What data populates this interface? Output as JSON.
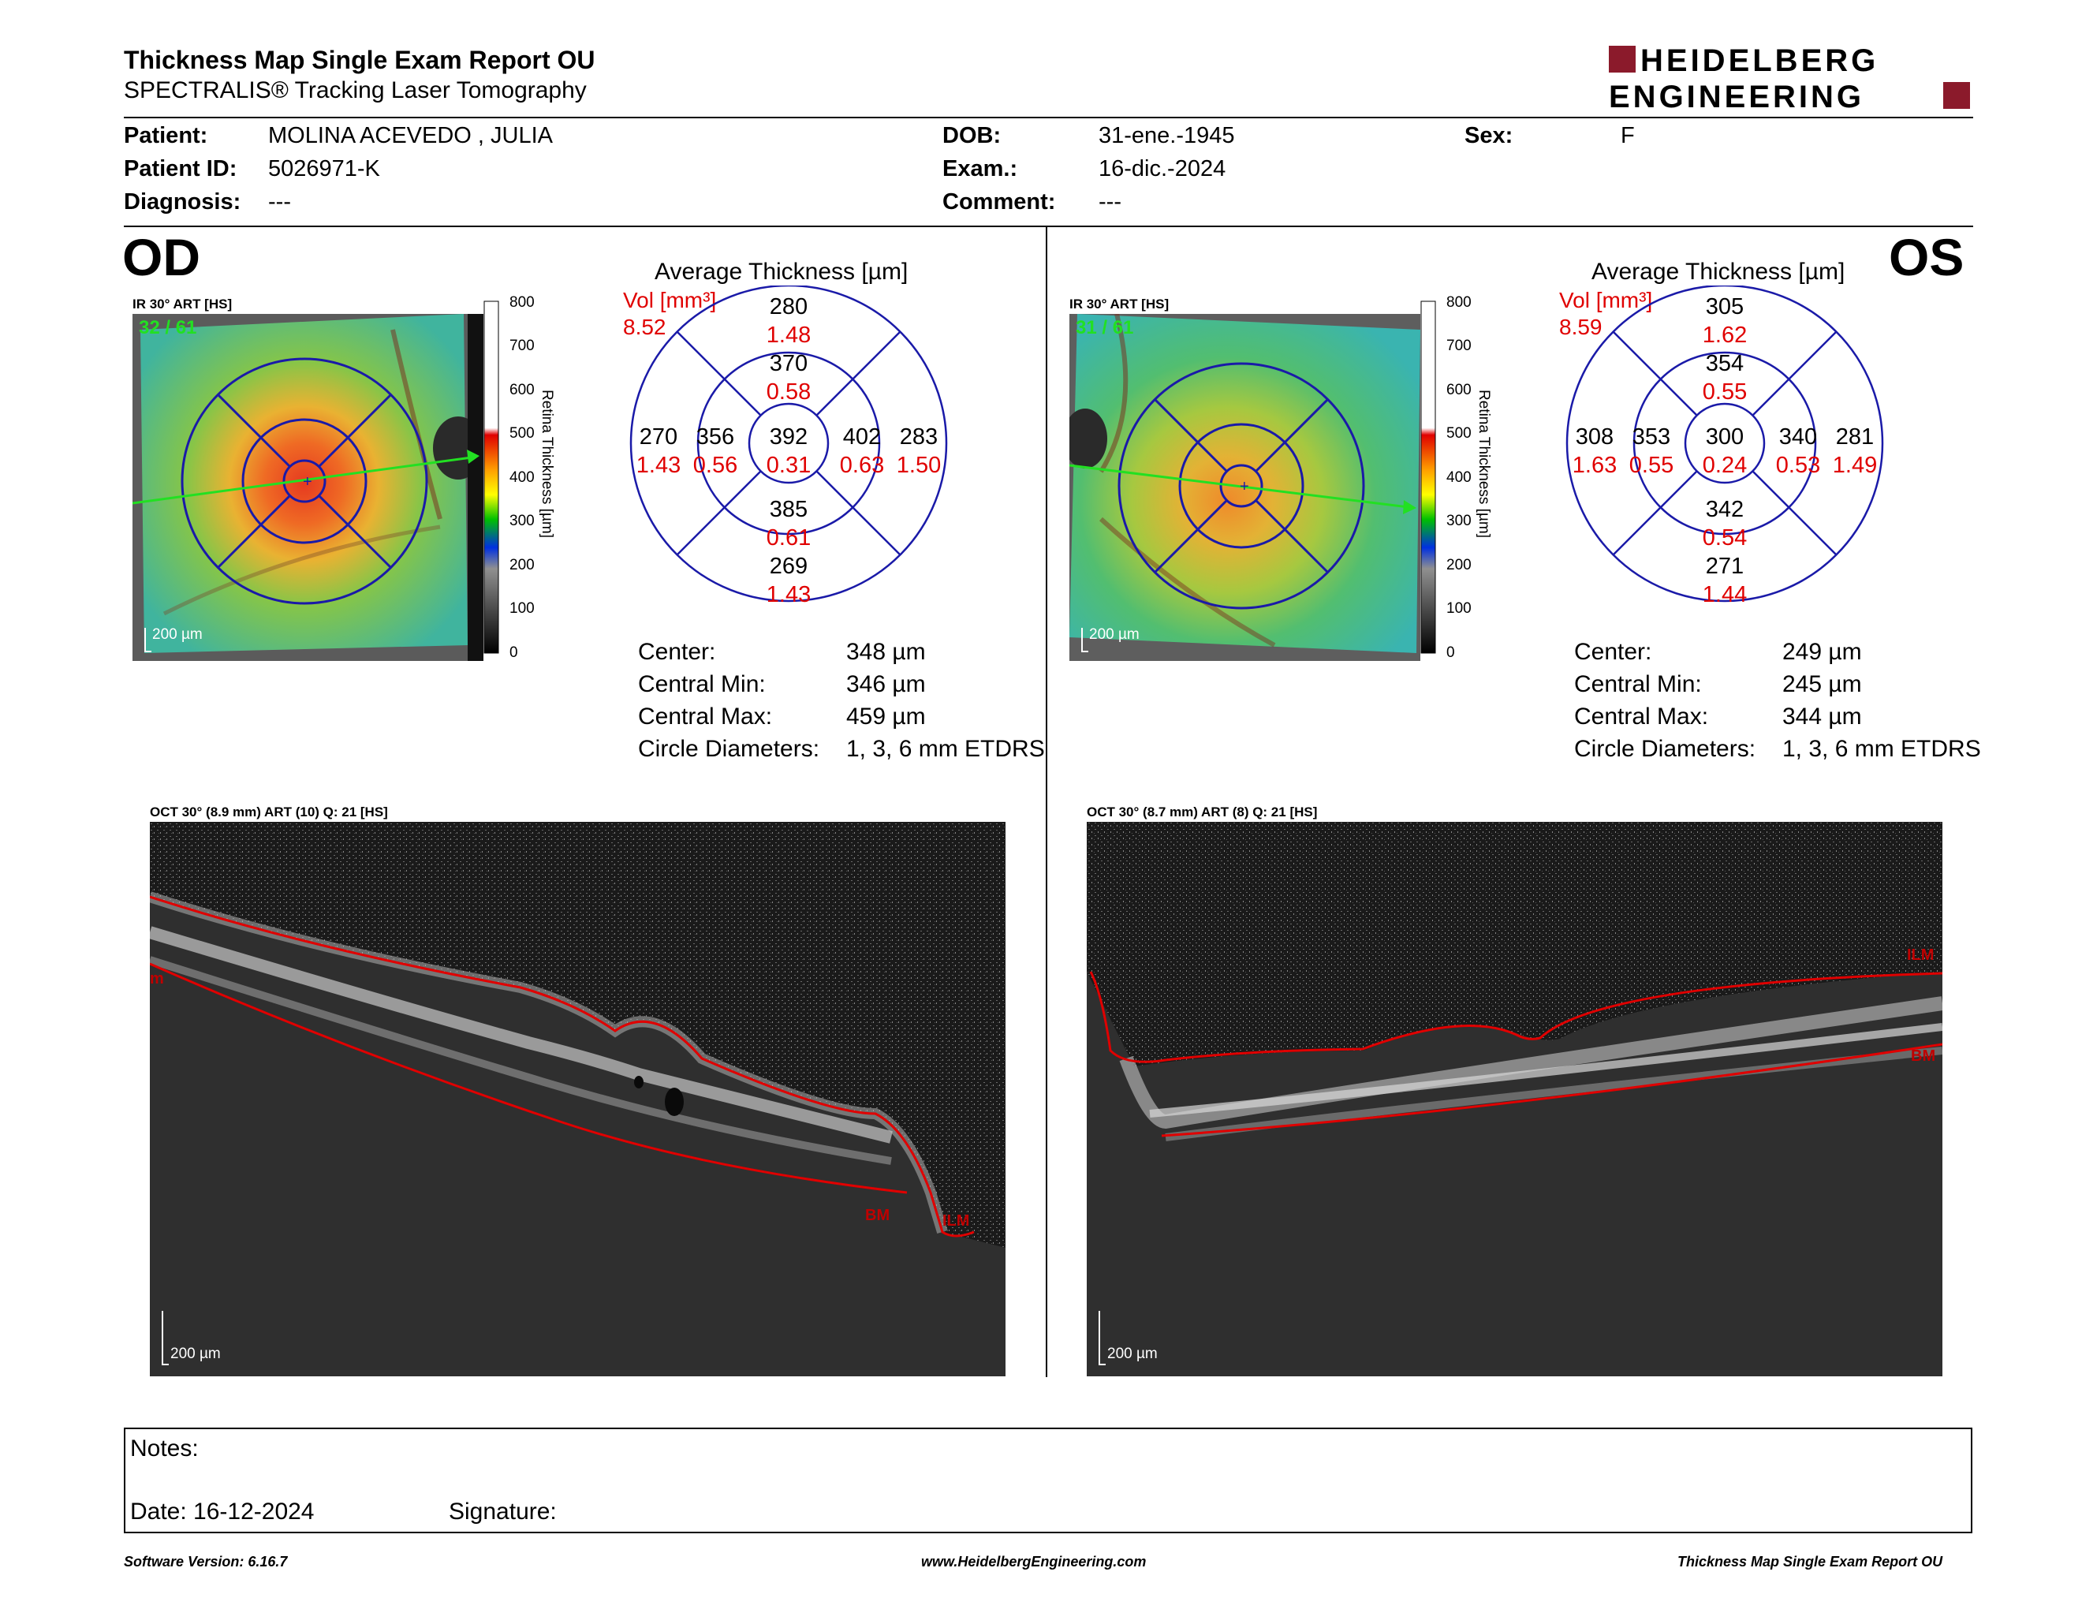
{
  "header": {
    "title": "Thickness Map Single Exam Report OU",
    "subtitle": "SPECTRALIS® Tracking Laser Tomography",
    "logo_line1": "HEIDELBERG",
    "logo_line2": "ENGINEERING"
  },
  "patient": {
    "patient_label": "Patient:",
    "patient_value": "MOLINA ACEVEDO , JULIA",
    "id_label": "Patient ID:",
    "id_value": "5026971-K",
    "diagnosis_label": "Diagnosis:",
    "diagnosis_value": "---",
    "dob_label": "DOB:",
    "dob_value": "31-ene.-1945",
    "exam_label": "Exam.:",
    "exam_value": "16-dic.-2024",
    "comment_label": "Comment:",
    "comment_value": "---",
    "sex_label": "Sex:",
    "sex_value": "F"
  },
  "od": {
    "eye": "OD",
    "ir_label": "IR 30° ART [HS]",
    "frame": "32 / 61",
    "scale": "200 µm",
    "colorbar_title": "Retina Thickness [µm]",
    "colorbar_ticks": [
      "800",
      "700",
      "600",
      "500",
      "400",
      "300",
      "200",
      "100",
      "0"
    ],
    "avg_title": "Average Thickness [µm]",
    "vol_label": "Vol [mm³]",
    "vol_value": "8.52",
    "sectors": {
      "outer_sup": {
        "t": "280",
        "v": "1.48"
      },
      "inner_sup": {
        "t": "370",
        "v": "0.58"
      },
      "outer_temp": {
        "t": "270",
        "v": "1.43"
      },
      "inner_temp": {
        "t": "356",
        "v": "0.56"
      },
      "center": {
        "t": "392",
        "v": "0.31"
      },
      "inner_nas": {
        "t": "402",
        "v": "0.63"
      },
      "outer_nas": {
        "t": "283",
        "v": "1.50"
      },
      "inner_inf": {
        "t": "385",
        "v": "0.61"
      },
      "outer_inf": {
        "t": "269",
        "v": "1.43"
      }
    },
    "stats": {
      "center_label": "Center:",
      "center_value": "348 µm",
      "min_label": "Central Min:",
      "min_value": "346 µm",
      "max_label": "Central Max:",
      "max_value": "459 µm",
      "diam_label": "Circle Diameters:",
      "diam_value": "1, 3, 6 mm ETDRS"
    },
    "oct_label": "OCT 30° (8.9 mm) ART (10) Q: 21 [HS]",
    "oct_scale": "200 µm",
    "oct_tags": [
      "m",
      "BM",
      "ILM"
    ]
  },
  "os": {
    "eye": "OS",
    "ir_label": "IR 30° ART [HS]",
    "frame": "31 / 61",
    "scale": "200 µm",
    "colorbar_title": "Retina Thickness [µm]",
    "colorbar_ticks": [
      "800",
      "700",
      "600",
      "500",
      "400",
      "300",
      "200",
      "100",
      "0"
    ],
    "avg_title": "Average Thickness [µm]",
    "vol_label": "Vol [mm³]",
    "vol_value": "8.59",
    "sectors": {
      "outer_sup": {
        "t": "305",
        "v": "1.62"
      },
      "inner_sup": {
        "t": "354",
        "v": "0.55"
      },
      "outer_temp": {
        "t": "308",
        "v": "1.63"
      },
      "inner_temp": {
        "t": "353",
        "v": "0.55"
      },
      "center": {
        "t": "300",
        "v": "0.24"
      },
      "inner_nas": {
        "t": "340",
        "v": "0.53"
      },
      "outer_nas": {
        "t": "281",
        "v": "1.49"
      },
      "inner_inf": {
        "t": "342",
        "v": "0.54"
      },
      "outer_inf": {
        "t": "271",
        "v": "1.44"
      }
    },
    "stats": {
      "center_label": "Center:",
      "center_value": "249 µm",
      "min_label": "Central Min:",
      "min_value": "245 µm",
      "max_label": "Central Max:",
      "max_value": "344 µm",
      "diam_label": "Circle Diameters:",
      "diam_value": "1, 3, 6 mm ETDRS"
    },
    "oct_label": "OCT 30° (8.7 mm) ART (8) Q: 21 [HS]",
    "oct_scale": "200 µm",
    "oct_tags": [
      "ILM",
      "BM"
    ]
  },
  "notes": {
    "notes_label": "Notes:",
    "date_label": "Date: 16-12-2024",
    "signature_label": "Signature:"
  },
  "footer": {
    "software": "Software Version: 6.16.7",
    "url": "www.HeidelbergEngineering.com",
    "report": "Thickness Map Single Exam Report OU"
  },
  "colors": {
    "accent_red": "#8b1a2b",
    "grid_blue": "#1a1aa8",
    "value_red": "#e00000"
  }
}
